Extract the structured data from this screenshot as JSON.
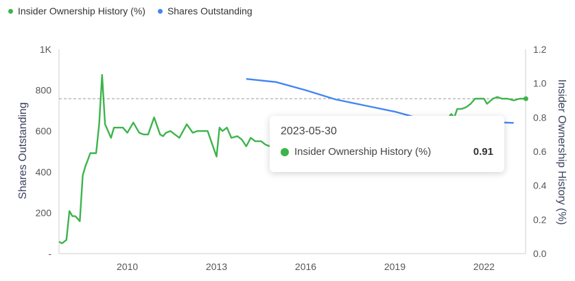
{
  "legend": {
    "insider_label": "Insider Ownership History (%)",
    "shares_label": "Shares Outstanding"
  },
  "colors": {
    "insider": "#3cb44b",
    "shares": "#4285f4",
    "reference_line": "#999999"
  },
  "tooltip": {
    "date": "2023-05-30",
    "series_label": "Insider Ownership History (%)",
    "value": "0.91"
  },
  "chart_data": {
    "type": "line",
    "xlabel": "",
    "ylabel_left": "Shares Outstanding",
    "ylabel_right": "Insider Ownership History (%)",
    "x_ticks": [
      "2010",
      "2013",
      "2016",
      "2019",
      "2022"
    ],
    "x_tick_values": [
      2010,
      2013,
      2016,
      2019,
      2022
    ],
    "xlim": [
      2007.7,
      2023.4
    ],
    "y_left_ticks": [
      "-",
      "200",
      "400",
      "600",
      "800",
      "1K"
    ],
    "y_left_tick_values": [
      0,
      200,
      400,
      600,
      800,
      1000
    ],
    "ylim_left": [
      0,
      1000
    ],
    "y_right_ticks": [
      "0.0",
      "0.2",
      "0.4",
      "0.6",
      "0.8",
      "1.0",
      "1.2"
    ],
    "y_right_tick_values": [
      0,
      0.2,
      0.4,
      0.6,
      0.8,
      1.0,
      1.2
    ],
    "ylim_right": [
      0,
      1.2
    ],
    "reference_line_y_right": 0.91,
    "series": [
      {
        "name": "Shares Outstanding",
        "axis": "left",
        "x": [
          2014.0,
          2015.0,
          2016.0,
          2017.0,
          2018.0,
          2019.0,
          2020.0,
          2021.0,
          2022.0,
          2023.0
        ],
        "y": [
          855,
          840,
          800,
          755,
          725,
          695,
          655,
          650,
          645,
          640
        ]
      },
      {
        "name": "Insider Ownership History (%)",
        "axis": "right",
        "x": [
          2007.7,
          2007.8,
          2007.95,
          2008.05,
          2008.15,
          2008.25,
          2008.4,
          2008.5,
          2008.6,
          2008.65,
          2008.75,
          2008.85,
          2008.95,
          2009.05,
          2009.15,
          2009.25,
          2009.3,
          2009.4,
          2009.45,
          2009.55,
          2009.65,
          2009.75,
          2009.85,
          2010.0,
          2010.2,
          2010.4,
          2010.55,
          2010.7,
          2010.9,
          2011.1,
          2011.2,
          2011.3,
          2011.45,
          2011.6,
          2011.75,
          2012.0,
          2012.2,
          2012.35,
          2012.5,
          2012.7,
          2013.0,
          2013.1,
          2013.2,
          2013.35,
          2013.5,
          2013.7,
          2013.85,
          2014.0,
          2014.15,
          2014.3,
          2014.5,
          2014.65,
          2014.8,
          2015.0,
          2015.3,
          2015.6,
          2015.9,
          2016.2,
          2016.5,
          2016.8,
          2017.1,
          2017.4,
          2017.7,
          2018.0,
          2018.3,
          2018.6,
          2018.9,
          2019.2,
          2019.5,
          2019.8,
          2020.1,
          2020.4,
          2020.6,
          2020.75,
          2020.9,
          2021.0,
          2021.1,
          2021.25,
          2021.4,
          2021.55,
          2021.7,
          2021.85,
          2022.0,
          2022.1,
          2022.3,
          2022.45,
          2022.6,
          2022.8,
          2023.0,
          2023.2,
          2023.41
        ],
        "y": [
          0.07,
          0.06,
          0.08,
          0.25,
          0.22,
          0.22,
          0.19,
          0.46,
          0.52,
          0.54,
          0.59,
          0.59,
          0.59,
          0.76,
          1.05,
          0.76,
          0.74,
          0.7,
          0.68,
          0.74,
          0.74,
          0.74,
          0.74,
          0.71,
          0.77,
          0.71,
          0.7,
          0.7,
          0.8,
          0.7,
          0.69,
          0.71,
          0.72,
          0.7,
          0.68,
          0.76,
          0.71,
          0.72,
          0.72,
          0.72,
          0.57,
          0.74,
          0.72,
          0.74,
          0.68,
          0.69,
          0.67,
          0.63,
          0.68,
          0.66,
          0.66,
          0.64,
          0.63,
          0.62,
          0.61,
          0.61,
          0.62,
          0.62,
          0.63,
          0.63,
          0.64,
          0.65,
          0.65,
          0.66,
          0.66,
          0.67,
          0.67,
          0.68,
          0.68,
          0.69,
          0.7,
          0.72,
          0.75,
          0.79,
          0.82,
          0.8,
          0.85,
          0.85,
          0.86,
          0.88,
          0.91,
          0.91,
          0.91,
          0.88,
          0.91,
          0.92,
          0.91,
          0.91,
          0.9,
          0.91,
          0.91
        ]
      }
    ]
  }
}
